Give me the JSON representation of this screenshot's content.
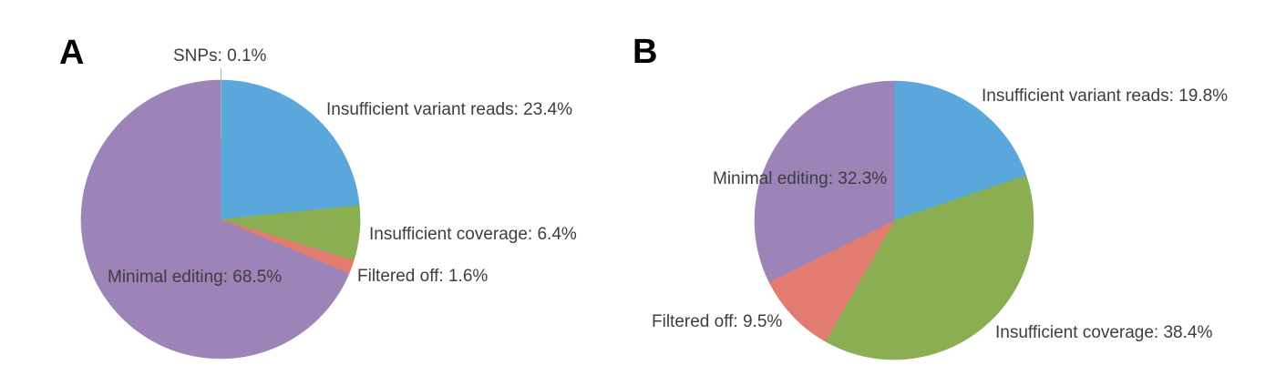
{
  "figure_background": "#ffffff",
  "text_color": "#3d3d3d",
  "panels": [
    {
      "letter": "A"
    },
    {
      "letter": "B"
    }
  ],
  "chart_data": [
    {
      "type": "pie",
      "panel": "A",
      "start_angle": "12 o'clock",
      "direction": "clockwise",
      "legend_position": "labels around and inside pie",
      "slices": [
        {
          "label": "Insufficient variant reads",
          "value": 23.4,
          "color": "#5aa7db"
        },
        {
          "label": "Insufficient coverage",
          "value": 6.4,
          "color": "#8cae52"
        },
        {
          "label": "Filtered off",
          "value": 1.6,
          "color": "#e27b70"
        },
        {
          "label": "Minimal editing",
          "value": 68.5,
          "color": "#9c84b9"
        },
        {
          "label": "SNPs",
          "value": 0.1,
          "color": "#9c84b9"
        }
      ]
    },
    {
      "type": "pie",
      "panel": "B",
      "start_angle": "12 o'clock",
      "direction": "clockwise",
      "legend_position": "labels around and inside pie",
      "slices": [
        {
          "label": "Insufficient variant reads",
          "value": 19.8,
          "color": "#5aa7db"
        },
        {
          "label": "Insufficient coverage",
          "value": 38.4,
          "color": "#8cae52"
        },
        {
          "label": "Filtered off",
          "value": 9.5,
          "color": "#e27b70"
        },
        {
          "label": "Minimal editing",
          "value": 32.3,
          "color": "#9c84b9"
        }
      ]
    }
  ]
}
